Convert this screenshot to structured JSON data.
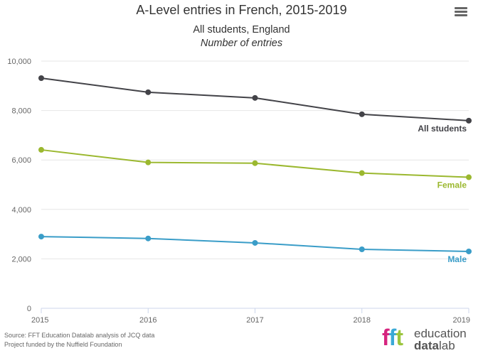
{
  "menu": {
    "icon": "hamburger-menu-icon"
  },
  "chart_data": {
    "type": "line",
    "title": "A-Level entries in French, 2015-2019",
    "subtitle": "All students, England",
    "subtitle2": "Number of entries",
    "xlabel": "",
    "ylabel": "",
    "x": [
      "2015",
      "2016",
      "2017",
      "2018",
      "2019"
    ],
    "ylim": [
      0,
      10000
    ],
    "yticks": [
      0,
      2000,
      4000,
      6000,
      8000,
      10000
    ],
    "ytick_labels": [
      "0",
      "2,000",
      "4,000",
      "6,000",
      "8,000",
      "10,000"
    ],
    "grid": true,
    "legend": "inline-labels-right",
    "series": [
      {
        "name": "All students",
        "color": "#434348",
        "values": [
          9310,
          8740,
          8510,
          7850,
          7590
        ]
      },
      {
        "name": "Female",
        "color": "#9bb82f",
        "values": [
          6410,
          5900,
          5870,
          5470,
          5300
        ]
      },
      {
        "name": "Male",
        "color": "#3a9dc8",
        "values": [
          2900,
          2825,
          2645,
          2385,
          2300
        ]
      }
    ]
  },
  "footer": {
    "source": "Source: FFT Education Datalab analysis of JCQ data",
    "funding": "Project funded by the Nuffield Foundation"
  },
  "logo": {
    "letters": [
      "f",
      "f",
      "t"
    ],
    "letter_colors": [
      "#d6247f",
      "#3aa9d6",
      "#9bc53d"
    ],
    "word1": "education",
    "word2a": "data",
    "word2b": "lab"
  }
}
